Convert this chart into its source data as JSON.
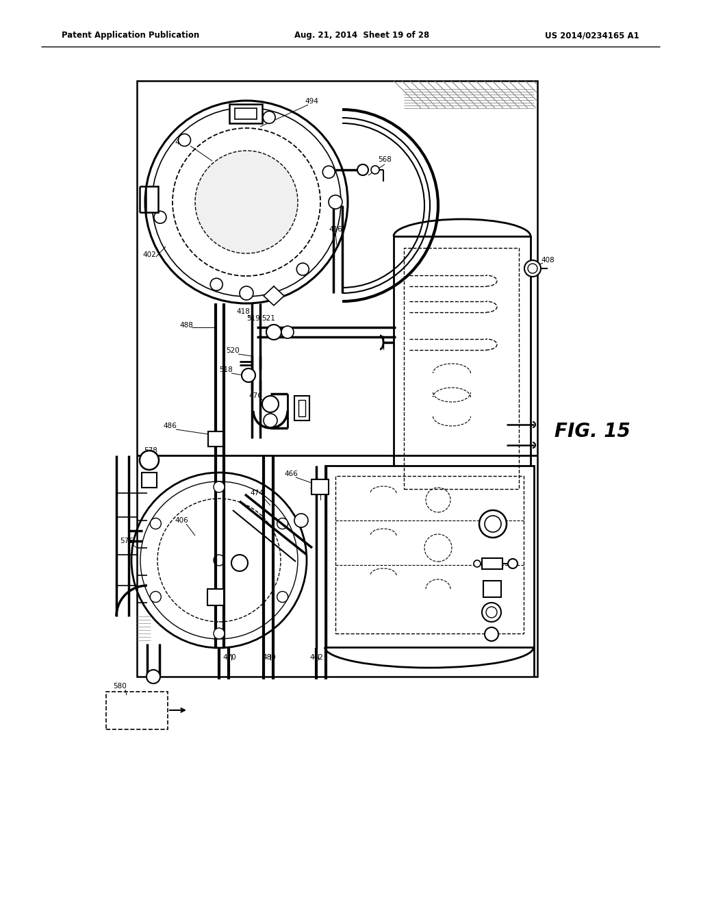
{
  "title_left": "Patent Application Publication",
  "title_mid": "Aug. 21, 2014  Sheet 19 of 28",
  "title_right": "US 2014/0234165 A1",
  "fig_label": "FIG. 15",
  "background": "#ffffff",
  "line_color": "#000000"
}
